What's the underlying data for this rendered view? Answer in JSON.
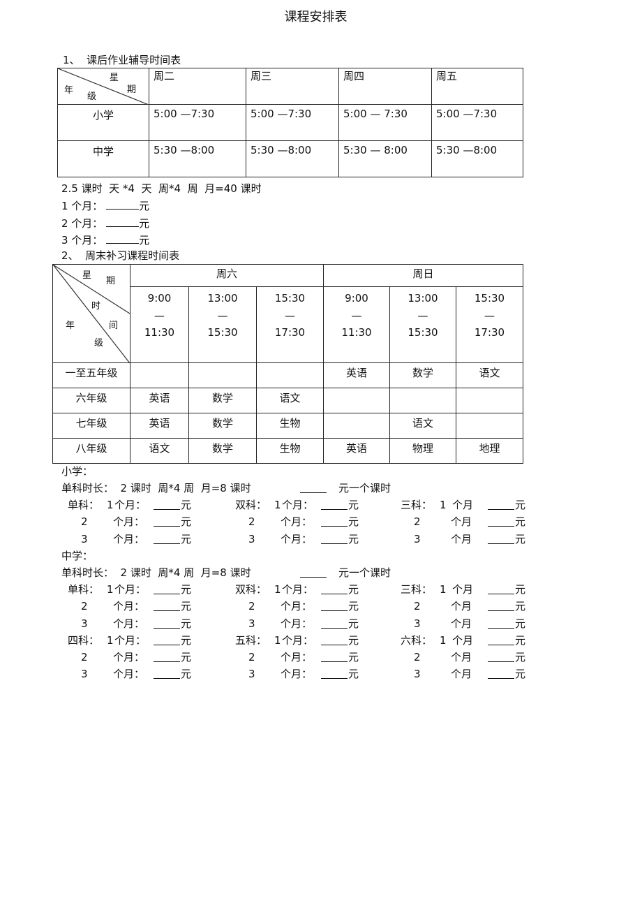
{
  "title": "课程安排表",
  "section1": {
    "heading": "1、  课后作业辅导时间表",
    "corner": {
      "top": "星",
      "right": "期",
      "left": "年",
      "bottom": "级"
    },
    "days": [
      "周二",
      "周三",
      "周四",
      "周五"
    ],
    "rows": [
      {
        "grade": "小学",
        "times": [
          "5:00 —7:30",
          "5:00 —7:30",
          "5:00 — 7:30",
          "5:00 —7:30"
        ]
      },
      {
        "grade": "中学",
        "times": [
          "5:30 —8:00",
          "5:30 —8:00",
          "5:30 — 8:00",
          "5:30 —8:00"
        ]
      }
    ],
    "formula": "2.5 课时  天 *4  天  周*4  周  月=40 课时",
    "months": [
      "1 个月：",
      "2 个月：",
      "3 个月："
    ],
    "yuan": "元"
  },
  "section2": {
    "heading": "2、  周末补习课程时间表",
    "corner": {
      "xing": "星",
      "qi": "期",
      "shi": "时",
      "nian": "年",
      "jian": "间",
      "ji": "级"
    },
    "days": [
      "周六",
      "周日"
    ],
    "slots": [
      {
        "start": "9:00",
        "dash": "—",
        "end": "11:30"
      },
      {
        "start": "13:00",
        "dash": "—",
        "end": "15:30"
      },
      {
        "start": "15:30",
        "dash": "—",
        "end": "17:30"
      },
      {
        "start": "9:00",
        "dash": "—",
        "end": "11:30"
      },
      {
        "start": "13:00",
        "dash": "—",
        "end": "15:30"
      },
      {
        "start": "15:30",
        "dash": "—",
        "end": "17:30"
      }
    ],
    "rows": [
      {
        "grade": "一至五年级",
        "cells": [
          "",
          "",
          "",
          "英语",
          "数学",
          "语文"
        ]
      },
      {
        "grade": "六年级",
        "cells": [
          "英语",
          "数学",
          "语文",
          "",
          "",
          ""
        ]
      },
      {
        "grade": "七年级",
        "cells": [
          "英语",
          "数学",
          "生物",
          "",
          "语文",
          ""
        ]
      },
      {
        "grade": "八年级",
        "cells": [
          "语文",
          "数学",
          "生物",
          "英语",
          "物理",
          "地理"
        ]
      }
    ]
  },
  "pricing": {
    "primary": {
      "label": "小学：",
      "duration": "单科时长：  2 课时  周*4 周  月=8 课时",
      "per_hour": "元一个课时",
      "groups": [
        [
          "单科：",
          "双科：",
          "三科："
        ]
      ]
    },
    "middle": {
      "label": "中学：",
      "duration": "单科时长：  2 课时  周*4 周  月=8 课时",
      "per_hour": "元一个课时",
      "groups": [
        [
          "单科：",
          "双科：",
          "三科："
        ],
        [
          "四科：",
          "五科：",
          "六科："
        ]
      ]
    },
    "row_numbers": [
      "1",
      "2",
      "3"
    ],
    "month_unit": "个月：",
    "month_unit_short": "个月",
    "yuan": "元"
  }
}
